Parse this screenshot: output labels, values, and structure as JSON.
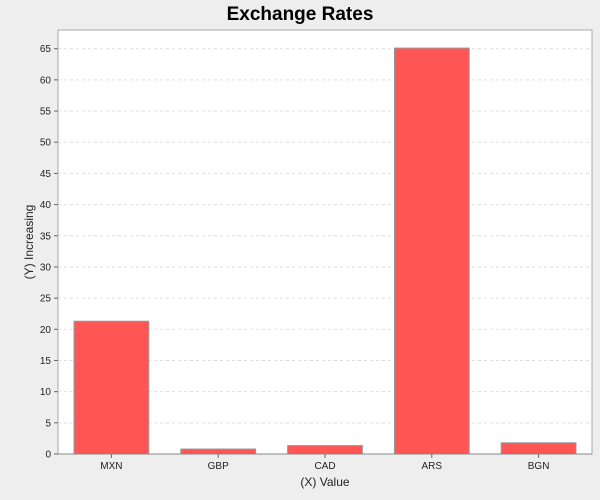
{
  "chart_data": {
    "type": "bar",
    "title": "Exchange Rates",
    "xlabel": "(X) Value",
    "ylabel": "(Y) Increasing",
    "categories": [
      "MXN",
      "GBP",
      "CAD",
      "ARS",
      "BGN"
    ],
    "values": [
      21.3,
      0.8,
      1.35,
      65.1,
      1.8
    ],
    "ylim": [
      0,
      68
    ],
    "yticks": [
      0,
      5,
      10,
      15,
      20,
      25,
      30,
      35,
      40,
      45,
      50,
      55,
      60,
      65
    ],
    "grid": true,
    "legend": "none",
    "colors": {
      "bar": "#ff5555",
      "bar_outline": "#999999",
      "plot_bg": "#ffffff",
      "page_bg": "#eeeeee",
      "grid": "#dddddd"
    }
  }
}
